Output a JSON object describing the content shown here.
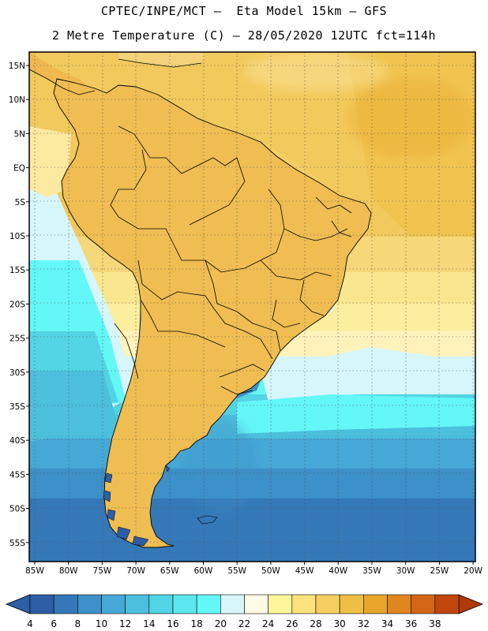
{
  "title": {
    "line1": "CPTEC/INPE/MCT –  Eta Model 15km – GFS",
    "line2": "2 Metre Temperature (C) – 28/05/2020 12UTC fct=114h"
  },
  "axes": {
    "lat_labels": [
      "15N",
      "10N",
      "5N",
      "EQ",
      "5S",
      "10S",
      "15S",
      "20S",
      "25S",
      "30S",
      "35S",
      "40S",
      "45S",
      "50S",
      "55S"
    ],
    "lon_labels": [
      "85W",
      "80W",
      "75W",
      "70W",
      "65W",
      "60W",
      "55W",
      "50W",
      "45W",
      "40W",
      "35W",
      "30W",
      "25W",
      "20W"
    ]
  },
  "colorbar": {
    "labels": [
      "4",
      "6",
      "8",
      "10",
      "12",
      "14",
      "16",
      "18",
      "20",
      "22",
      "24",
      "26",
      "28",
      "30",
      "32",
      "34",
      "36",
      "38"
    ],
    "colors": [
      "#2d5ea6",
      "#3478b8",
      "#3d90c8",
      "#46a8d6",
      "#4cbfdd",
      "#52d4e4",
      "#5ae8ee",
      "#63f7f7",
      "#d6f6fb",
      "#fffae6",
      "#fff59a",
      "#fbe27c",
      "#f5cf5f",
      "#eebf45",
      "#e8a52c",
      "#e08620",
      "#d36614",
      "#c0460c"
    ],
    "under_color": "#2d5ea6",
    "over_color": "#b0390a"
  }
}
